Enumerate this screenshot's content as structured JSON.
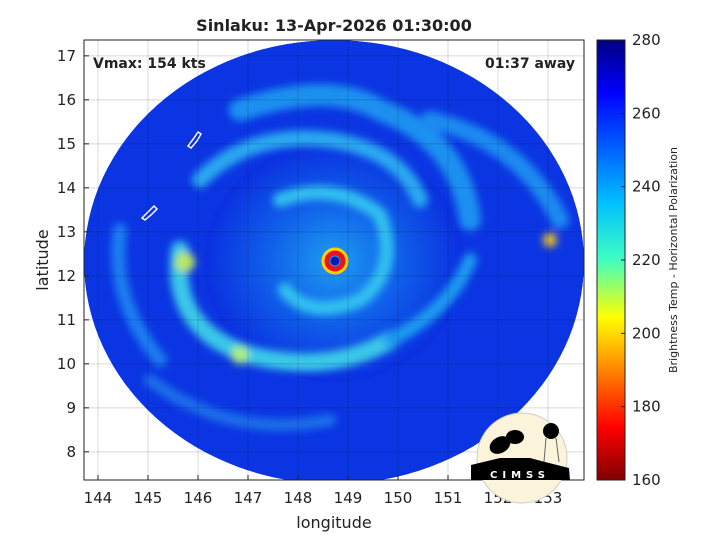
{
  "title": "Sinlaku: 13-Apr-2026 01:30:00",
  "annotations": {
    "vmax": "Vmax: 154 kts",
    "time_away": "01:37 away"
  },
  "xlabel": "longitude",
  "ylabel": "latitude",
  "xlim": [
    143.72,
    153.72
  ],
  "ylim": [
    7.36,
    17.36
  ],
  "xticks": [
    "144",
    "145",
    "146",
    "147",
    "148",
    "149",
    "150",
    "151",
    "152",
    "153"
  ],
  "yticks": [
    "8",
    "9",
    "10",
    "11",
    "12",
    "13",
    "14",
    "15",
    "16",
    "17"
  ],
  "grid": true,
  "colorbar": {
    "label": "Brightness Temp - Horizontal Polarization",
    "range": [
      160,
      280
    ],
    "ticks": [
      "160",
      "180",
      "200",
      "220",
      "240",
      "260",
      "280"
    ],
    "colormap": "jet",
    "placement": "right"
  },
  "storm_center": {
    "lon": 148.55,
    "lat": 12.35
  },
  "logo": {
    "text": "CIMSS"
  },
  "colors": {
    "background_tb": "#0a2be0",
    "band_tb": "#1fa0f0",
    "eyewall": "#e8141c"
  }
}
